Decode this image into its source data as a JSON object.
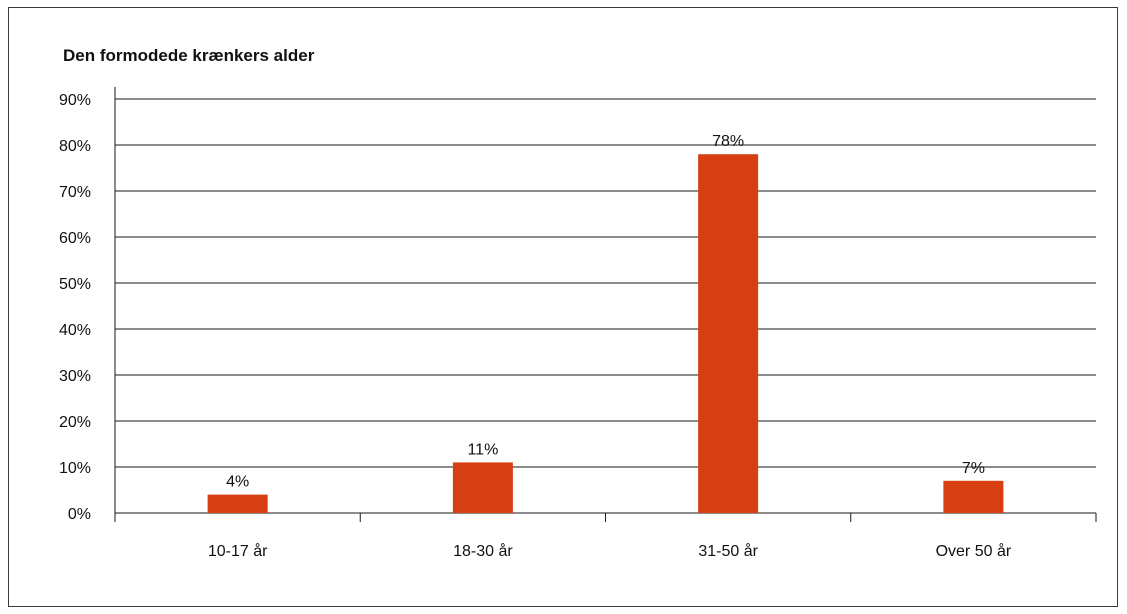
{
  "chart_data": {
    "type": "bar",
    "title": "Den formodede krænkers alder",
    "categories": [
      "10-17 år",
      "18-30 år",
      "31-50 år",
      "Over 50 år"
    ],
    "values": [
      4,
      11,
      78,
      7
    ],
    "data_labels": [
      "4%",
      "11%",
      "78%",
      "7%"
    ],
    "ylim": [
      0,
      90
    ],
    "y_ticks": [
      0,
      10,
      20,
      30,
      40,
      50,
      60,
      70,
      80,
      90
    ],
    "y_tick_labels": [
      "0%",
      "10%",
      "20%",
      "30%",
      "40%",
      "50%",
      "60%",
      "70%",
      "80%",
      "90%"
    ],
    "grid": true,
    "legend": "none",
    "bar_color": "#d63f11",
    "grid_color": "#1a1a1a"
  }
}
